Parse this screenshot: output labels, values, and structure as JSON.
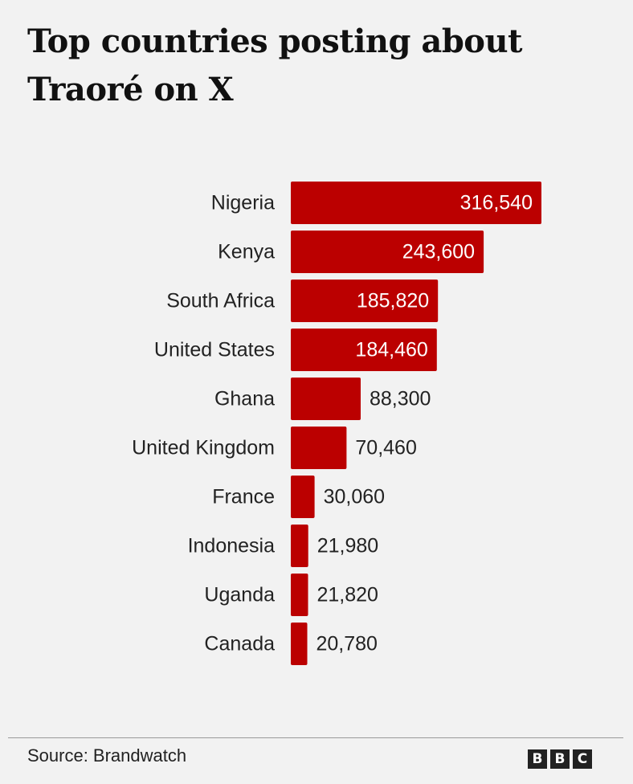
{
  "header": {
    "title": "Top countries posting about Traoré on X"
  },
  "footer": {
    "source": "Source:  Brandwatch",
    "logo_letters": [
      "B",
      "B",
      "C"
    ]
  },
  "colors": {
    "bar": "#bb0000",
    "label_inside": "#ffffff",
    "label_outside": "#222222"
  },
  "chart_data": {
    "type": "bar",
    "orientation": "horizontal",
    "title": "Top countries posting about Traoré on X",
    "categories": [
      "Nigeria",
      "Kenya",
      "South Africa",
      "United States",
      "Ghana",
      "United Kingdom",
      "France",
      "Indonesia",
      "Uganda",
      "Canada"
    ],
    "values": [
      316540,
      243600,
      185820,
      184460,
      88300,
      70460,
      30060,
      21980,
      21820,
      20780
    ],
    "value_labels": [
      "316,540",
      "243,600",
      "185,820",
      "184,460",
      "88,300",
      "70,460",
      "30,060",
      "21,980",
      "21,820",
      "20,780"
    ],
    "xlabel": "",
    "ylabel": "",
    "grid": false,
    "legend": "none"
  }
}
